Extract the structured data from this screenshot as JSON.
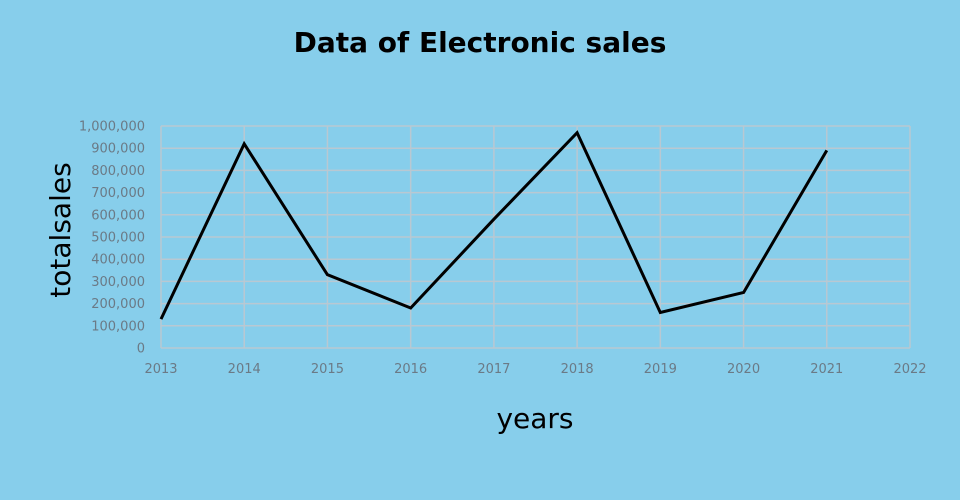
{
  "chart_data": {
    "type": "line",
    "title": "Data of Electronic sales",
    "xlabel": "years",
    "ylabel": "totalsales",
    "x_ticks": [
      "2013",
      "2014",
      "2015",
      "2016",
      "2017",
      "2018",
      "2019",
      "2020",
      "2021",
      "2022"
    ],
    "y_ticks": [
      "0",
      "100,000",
      "200,000",
      "300,000",
      "400,000",
      "500,000",
      "600,000",
      "700,000",
      "800,000",
      "900,000",
      "1,000,000"
    ],
    "xlim": [
      2013,
      2022
    ],
    "ylim": [
      0,
      1000000
    ],
    "grid": true,
    "series": [
      {
        "x": [
          2013,
          2014,
          2015,
          2016,
          2017,
          2018,
          2019,
          2020,
          2021
        ],
        "values": [
          130000,
          920000,
          330000,
          180000,
          580000,
          970000,
          160000,
          250000,
          890000
        ],
        "color": "#000000"
      }
    ]
  }
}
